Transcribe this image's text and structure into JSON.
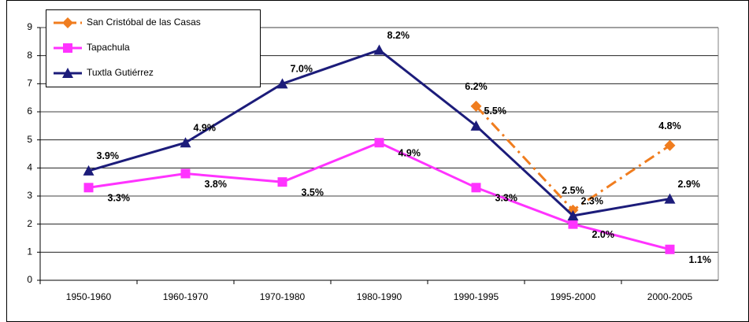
{
  "chart_data": {
    "type": "line",
    "categories": [
      "1950-1960",
      "1960-1970",
      "1970-1980",
      "1980-1990",
      "1990-1995",
      "1995-2000",
      "2000-2005"
    ],
    "series": [
      {
        "name": "San Cristóbal de las Casas",
        "color": "#f07d1f",
        "marker": "diamond",
        "dashed": true,
        "values": [
          null,
          null,
          null,
          null,
          6.2,
          2.5,
          4.8
        ],
        "value_labels": [
          null,
          null,
          null,
          null,
          "6.2%",
          "2.5%",
          "4.8%"
        ]
      },
      {
        "name": "Tapachula",
        "color": "#ff33ff",
        "marker": "square",
        "dashed": false,
        "values": [
          3.3,
          3.8,
          3.5,
          4.9,
          3.3,
          2.0,
          1.1
        ],
        "value_labels": [
          "3.3%",
          "3.8%",
          "3.5%",
          "4.9%",
          "3.3%",
          "2.0%",
          "1.1%"
        ]
      },
      {
        "name": "Tuxtla Gutiérrez",
        "color": "#1c1c7a",
        "marker": "triangle",
        "dashed": false,
        "values": [
          3.9,
          4.9,
          7.0,
          8.2,
          5.5,
          2.3,
          2.9
        ],
        "value_labels": [
          "3.9%",
          "4.9%",
          "7.0%",
          "8.2%",
          "5.5%",
          "2.3%",
          "2.9%"
        ]
      }
    ],
    "ylim": [
      0,
      9
    ],
    "yticks": [
      0,
      1,
      2,
      3,
      4,
      5,
      6,
      7,
      8,
      9
    ],
    "grid": true,
    "legend": "top-left"
  }
}
